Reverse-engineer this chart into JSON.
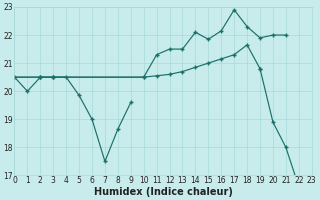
{
  "xlabel": "Humidex (Indice chaleur)",
  "xlim": [
    0,
    23
  ],
  "ylim": [
    17,
    23
  ],
  "yticks": [
    17,
    18,
    19,
    20,
    21,
    22,
    23
  ],
  "xticks": [
    0,
    1,
    2,
    3,
    4,
    5,
    6,
    7,
    8,
    9,
    10,
    11,
    12,
    13,
    14,
    15,
    16,
    17,
    18,
    19,
    20,
    21,
    22,
    23
  ],
  "background_color": "#c8ecec",
  "grid_color": "#a8d8d8",
  "line_color": "#1a7068",
  "line1_x": [
    0,
    1,
    2,
    3,
    4,
    5,
    6,
    7,
    8,
    9,
    19,
    20,
    21,
    22,
    23
  ],
  "line1_y": [
    20.5,
    20.0,
    20.5,
    20.5,
    20.5,
    19.85,
    19.0,
    17.5,
    18.65,
    19.6,
    20.8,
    18.9,
    18.0,
    16.6,
    16.6
  ],
  "line2_x": [
    0,
    2,
    3,
    10,
    11,
    12,
    13,
    14,
    15,
    16,
    17,
    18,
    19,
    20,
    21
  ],
  "line2_y": [
    20.5,
    20.5,
    20.5,
    20.5,
    21.3,
    21.5,
    21.5,
    22.1,
    21.85,
    22.15,
    22.9,
    22.3,
    21.9,
    22.0,
    22.0
  ],
  "line3_x": [
    0,
    2,
    3,
    10,
    11,
    12,
    13,
    14,
    15,
    16,
    17,
    18,
    19
  ],
  "line3_y": [
    20.5,
    20.5,
    20.5,
    20.5,
    20.55,
    20.6,
    20.7,
    20.85,
    21.0,
    21.15,
    21.3,
    21.65,
    20.8
  ],
  "tick_fontsize": 5.5,
  "label_fontsize": 7,
  "font_color": "#222222"
}
